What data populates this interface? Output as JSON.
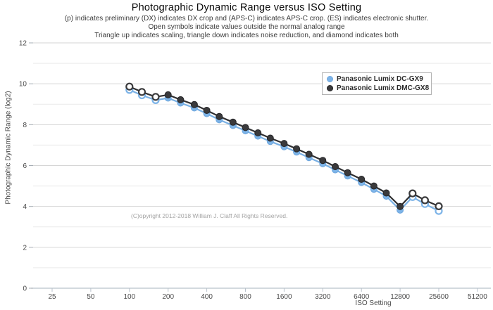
{
  "page": {
    "title": "Photographic Dynamic Range versus ISO Setting",
    "subtitle_lines": [
      "(p) indicates preliminary (DX) indicates DX crop and (APS-C) indicates APS-C crop. (ES) indicates electronic shutter.",
      "Open symbols indicate values outside the normal analog range",
      "Triangle up indicates scaling, triangle down indicates noise reduction, and diamond indicates both"
    ],
    "copyright": "(C)opyright 2012-2018 William J. Claff All Rights Reserved."
  },
  "chart_data": {
    "type": "line",
    "title": "Photographic Dynamic Range versus ISO Setting",
    "xlabel": "ISO Setting",
    "ylabel": "Photographic Dynamic Range (log2)",
    "x_scale": "log2",
    "grid": true,
    "legend_position": "upper-right-inside",
    "ylim": [
      0,
      12
    ],
    "y_ticks": [
      0,
      2,
      4,
      6,
      8,
      10,
      12
    ],
    "x_ticks": [
      25,
      50,
      100,
      200,
      400,
      800,
      1600,
      3200,
      6400,
      12800,
      25600,
      51200
    ],
    "colors": {
      "gx9_blue": "#7db4e8",
      "gx8_dark": "#3a3a3c",
      "grid_major": "#d6d6d6",
      "grid_minor": "#eaeaea",
      "axis": "#b9c2cb",
      "tick_text": "#4a4a4a"
    },
    "series": [
      {
        "name": "Panasonic Lumix DC-GX9",
        "marker_color": "#7db4e8",
        "marker_edge": "#6ea6dd",
        "line_color": "#79b0e4",
        "points": [
          {
            "iso": 100,
            "pdr": 9.7,
            "open": true
          },
          {
            "iso": 125,
            "pdr": 9.44,
            "open": true
          },
          {
            "iso": 160,
            "pdr": 9.2,
            "open": true
          },
          {
            "iso": 200,
            "pdr": 9.3,
            "open": false
          },
          {
            "iso": 250,
            "pdr": 9.06,
            "open": false
          },
          {
            "iso": 320,
            "pdr": 8.82,
            "open": false
          },
          {
            "iso": 400,
            "pdr": 8.54,
            "open": false
          },
          {
            "iso": 500,
            "pdr": 8.24,
            "open": false
          },
          {
            "iso": 640,
            "pdr": 7.96,
            "open": false
          },
          {
            "iso": 800,
            "pdr": 7.7,
            "open": false
          },
          {
            "iso": 1000,
            "pdr": 7.44,
            "open": false
          },
          {
            "iso": 1250,
            "pdr": 7.18,
            "open": false
          },
          {
            "iso": 1600,
            "pdr": 6.92,
            "open": false
          },
          {
            "iso": 2000,
            "pdr": 6.66,
            "open": false
          },
          {
            "iso": 2500,
            "pdr": 6.39,
            "open": false
          },
          {
            "iso": 3200,
            "pdr": 6.09,
            "open": false
          },
          {
            "iso": 4000,
            "pdr": 5.79,
            "open": false
          },
          {
            "iso": 5000,
            "pdr": 5.49,
            "open": false
          },
          {
            "iso": 6400,
            "pdr": 5.17,
            "open": false
          },
          {
            "iso": 8000,
            "pdr": 4.84,
            "open": false
          },
          {
            "iso": 10000,
            "pdr": 4.5,
            "open": false
          },
          {
            "iso": 12800,
            "pdr": 3.82,
            "open": false
          },
          {
            "iso": 16000,
            "pdr": 4.46,
            "open": true
          },
          {
            "iso": 20000,
            "pdr": 4.12,
            "open": true
          },
          {
            "iso": 25600,
            "pdr": 3.78,
            "open": true
          }
        ]
      },
      {
        "name": "Panasonic Lumix DMC-GX8",
        "marker_color": "#3a3a3c",
        "marker_edge": "#242426",
        "line_color": "#2f2f31",
        "points": [
          {
            "iso": 100,
            "pdr": 9.86,
            "open": true
          },
          {
            "iso": 125,
            "pdr": 9.6,
            "open": true
          },
          {
            "iso": 160,
            "pdr": 9.36,
            "open": true
          },
          {
            "iso": 200,
            "pdr": 9.46,
            "open": false
          },
          {
            "iso": 250,
            "pdr": 9.22,
            "open": false
          },
          {
            "iso": 320,
            "pdr": 8.98,
            "open": false
          },
          {
            "iso": 400,
            "pdr": 8.7,
            "open": false
          },
          {
            "iso": 500,
            "pdr": 8.4,
            "open": false
          },
          {
            "iso": 640,
            "pdr": 8.12,
            "open": false
          },
          {
            "iso": 800,
            "pdr": 7.86,
            "open": false
          },
          {
            "iso": 1000,
            "pdr": 7.6,
            "open": false
          },
          {
            "iso": 1250,
            "pdr": 7.34,
            "open": false
          },
          {
            "iso": 1600,
            "pdr": 7.08,
            "open": false
          },
          {
            "iso": 2000,
            "pdr": 6.82,
            "open": false
          },
          {
            "iso": 2500,
            "pdr": 6.55,
            "open": false
          },
          {
            "iso": 3200,
            "pdr": 6.25,
            "open": false
          },
          {
            "iso": 4000,
            "pdr": 5.95,
            "open": false
          },
          {
            "iso": 5000,
            "pdr": 5.65,
            "open": false
          },
          {
            "iso": 6400,
            "pdr": 5.33,
            "open": false
          },
          {
            "iso": 8000,
            "pdr": 5.0,
            "open": false
          },
          {
            "iso": 10000,
            "pdr": 4.66,
            "open": false
          },
          {
            "iso": 12800,
            "pdr": 4.0,
            "open": false
          },
          {
            "iso": 16000,
            "pdr": 4.64,
            "open": true
          },
          {
            "iso": 20000,
            "pdr": 4.3,
            "open": true
          },
          {
            "iso": 25600,
            "pdr": 4.01,
            "open": true
          }
        ]
      }
    ]
  }
}
